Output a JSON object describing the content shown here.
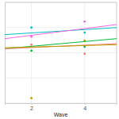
{
  "chart_data": {
    "type": "scatter",
    "x_label": "Wave",
    "xlim": [
      1,
      5.2
    ],
    "xticks": [
      2,
      4
    ],
    "ylim": [
      0,
      10
    ],
    "yticks": [
      0,
      2.5,
      5,
      7.5,
      10
    ],
    "grid": true,
    "tick_labels": "x",
    "series": [
      {
        "type": "scatter",
        "color": "#00BFC4",
        "marker": "circle",
        "x": [
          2,
          4
        ],
        "values": [
          7.5,
          7.0
        ]
      },
      {
        "type": "line",
        "color": "#00BFC4",
        "line_style": "solid",
        "x": [
          1,
          5.2
        ],
        "values": [
          6.8,
          7.5
        ]
      },
      {
        "type": "scatter",
        "color": "#F564E3",
        "marker": "circle",
        "x": [
          2,
          4
        ],
        "values": [
          6.6,
          8.1
        ]
      },
      {
        "type": "line",
        "color": "#F564E3",
        "line_style": "solid",
        "x": [
          1,
          5.2
        ],
        "values": [
          6.4,
          7.8
        ]
      },
      {
        "type": "scatter",
        "color": "#00BA38",
        "marker": "circle",
        "x": [
          2,
          4
        ],
        "values": [
          5.2,
          5.6
        ]
      },
      {
        "type": "line",
        "color": "#00BA38",
        "line_style": "solid",
        "x": [
          1,
          5.2
        ],
        "values": [
          5.4,
          6.4
        ]
      },
      {
        "type": "scatter",
        "color": "#F8766D",
        "marker": "circle",
        "x": [
          2,
          4
        ],
        "values": [
          5.8,
          4.9
        ]
      },
      {
        "type": "line",
        "color": "#F8766D",
        "line_style": "solid",
        "x": [
          1,
          5.2
        ],
        "values": [
          5.4,
          5.9
        ]
      },
      {
        "type": "scatter",
        "color": "#B79F00",
        "marker": "circle",
        "x": [
          2,
          4
        ],
        "values": [
          0.5,
          6.2
        ]
      },
      {
        "type": "line",
        "color": "#B79F00",
        "line_style": "solid",
        "x": [
          1,
          5.2
        ],
        "values": [
          5.5,
          5.8
        ]
      }
    ]
  }
}
